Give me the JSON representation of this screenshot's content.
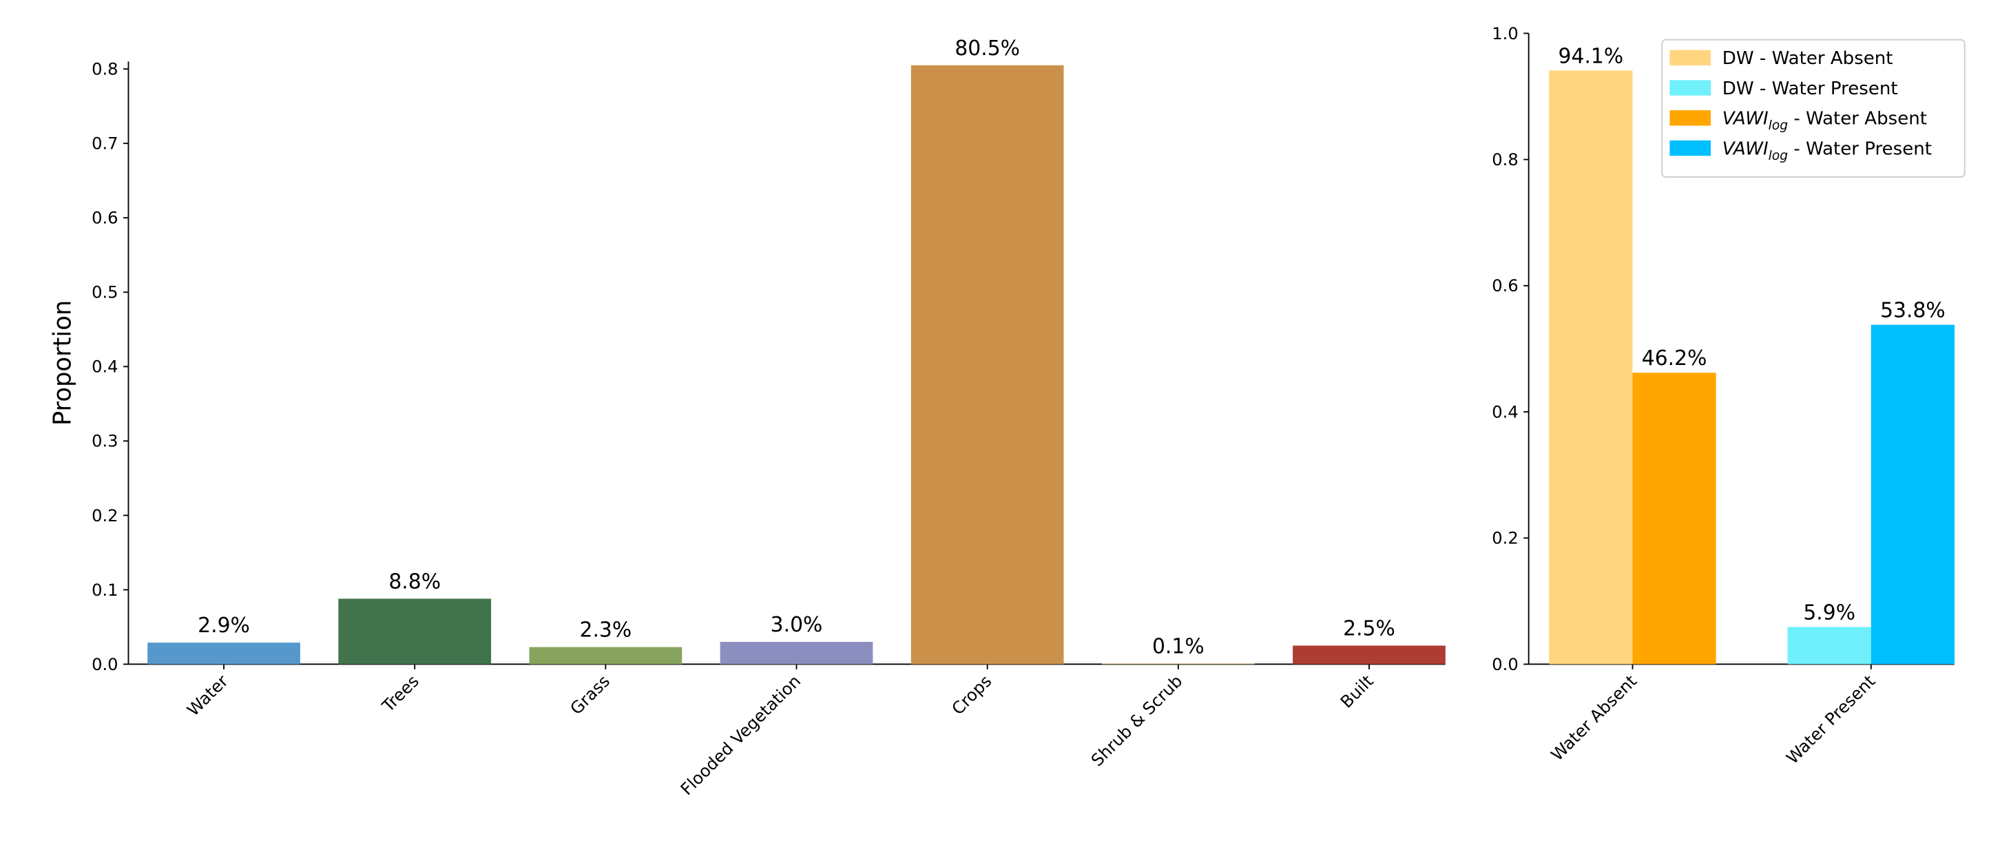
{
  "chart_data": [
    {
      "type": "bar",
      "ylabel": "Proportion",
      "categories": [
        "Water",
        "Trees",
        "Grass",
        "Flooded Vegetation",
        "Crops",
        "Shrub & Scrub",
        "Built"
      ],
      "values": [
        0.029,
        0.088,
        0.023,
        0.03,
        0.805,
        0.001,
        0.025
      ],
      "value_labels": [
        "2.9%",
        "8.8%",
        "2.3%",
        "3.0%",
        "80.5%",
        "0.1%",
        "2.5%"
      ],
      "colors": [
        "#5698cb",
        "#41744d",
        "#87a35e",
        "#8a8fbf",
        "#cb914b",
        "#e2c68f",
        "#ad3c33"
      ],
      "ylim": [
        0,
        0.81
      ],
      "yticks": [
        {
          "value": 0,
          "label": "0.0"
        },
        0.1,
        0.2,
        0.3,
        0.4,
        0.5,
        0.6,
        0.7,
        0.8
      ]
    },
    {
      "type": "bar",
      "categories": [
        "Water Absent",
        "Water Present"
      ],
      "series": [
        {
          "name": "DW - Water Absent",
          "color": "#ffd580",
          "values": [
            0.941,
            null
          ],
          "value_labels": [
            "94.1%",
            null
          ]
        },
        {
          "name": "DW - Water Present",
          "color": "#6ff0fb",
          "values": [
            null,
            0.059
          ],
          "value_labels": [
            null,
            "5.9%"
          ]
        },
        {
          "name": "VAWIlog - Water Absent",
          "color": "#ffa500",
          "values": [
            0.462,
            null
          ],
          "value_labels": [
            "46.2%",
            null
          ]
        },
        {
          "name": "VAWIlog - Water Present",
          "color": "#00bfff",
          "values": [
            null,
            0.538
          ],
          "value_labels": [
            null,
            "53.8%"
          ]
        }
      ],
      "ylim": [
        0,
        1
      ],
      "yticks": [
        {
          "value": 0,
          "label": "0.0"
        },
        0.2,
        0.4,
        0.6,
        0.8,
        {
          "value": 1,
          "label": "1.0"
        }
      ],
      "legend": "upper right"
    }
  ]
}
